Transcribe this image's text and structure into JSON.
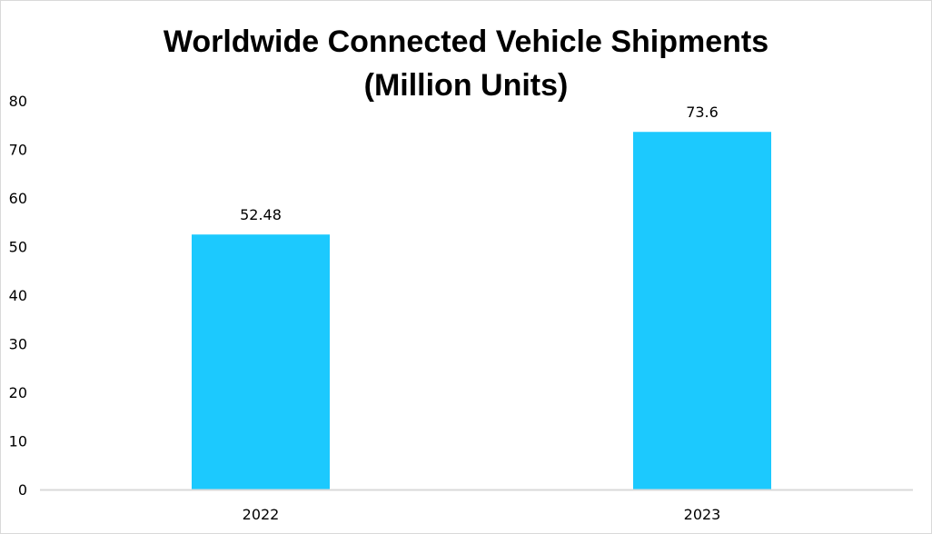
{
  "chart_data": {
    "type": "bar",
    "title_lines": [
      "Worldwide Connected Vehicle Shipments",
      "(Million Units)"
    ],
    "categories": [
      "2022",
      "2023"
    ],
    "values": [
      52.48,
      73.6
    ],
    "data_labels": [
      "52.48",
      "73.6"
    ],
    "ylim": [
      0,
      80
    ],
    "yticks": [
      "0",
      "10",
      "20",
      "30",
      "40",
      "50",
      "60",
      "70",
      "80"
    ],
    "xlabel": "",
    "ylabel": "",
    "grid": false,
    "legend": "none",
    "bar_color": "#1CC9FE",
    "axis_color": "#d9d9d9"
  }
}
